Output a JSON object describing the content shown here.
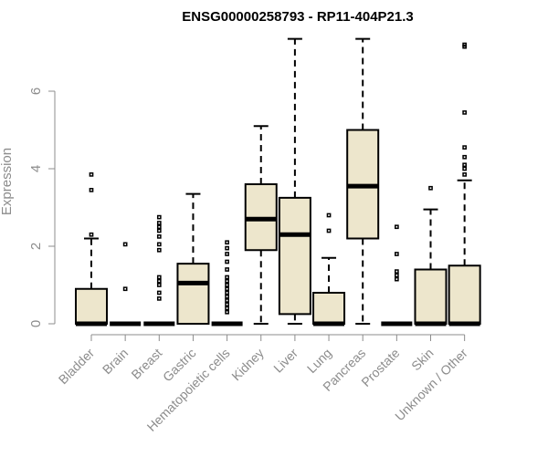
{
  "chart_data": {
    "type": "box",
    "title": "ENSG00000258793 - RP11-404P21.3",
    "xlabel": "",
    "ylabel": "Expression",
    "ylim": [
      0,
      7.4
    ],
    "yticks": [
      0,
      2,
      4,
      6
    ],
    "categories": [
      "Bladder",
      "Brain",
      "Breast",
      "Gastric",
      "Hematopoietic cells",
      "Kidney",
      "Liver",
      "Lung",
      "Pancreas",
      "Prostate",
      "Skin",
      "Unknown / Other"
    ],
    "boxes": [
      {
        "name": "Bladder",
        "whisker_low": 0,
        "q1": 0,
        "median": 0,
        "q3": 0.9,
        "whisker_high": 2.2,
        "outliers": [
          2.3,
          3.45,
          3.85
        ]
      },
      {
        "name": "Brain",
        "whisker_low": 0,
        "q1": 0,
        "median": 0,
        "q3": 0,
        "whisker_high": 0,
        "outliers": [
          0.9,
          2.05
        ]
      },
      {
        "name": "Breast",
        "whisker_low": 0,
        "q1": 0,
        "median": 0,
        "q3": 0,
        "whisker_high": 0,
        "outliers": [
          0.65,
          0.8,
          1.0,
          1.1,
          1.2,
          1.9,
          2.05,
          2.25,
          2.4,
          2.5,
          2.6,
          2.75
        ]
      },
      {
        "name": "Gastric",
        "whisker_low": 0,
        "q1": 0,
        "median": 1.05,
        "q3": 1.55,
        "whisker_high": 3.35,
        "outliers": []
      },
      {
        "name": "Hematopoietic cells",
        "whisker_low": 0,
        "q1": 0,
        "median": 0,
        "q3": 0,
        "whisker_high": 0,
        "outliers": [
          0.3,
          0.4,
          0.5,
          0.6,
          0.7,
          0.8,
          0.9,
          1.0,
          1.1,
          1.2,
          1.4,
          1.6,
          1.8,
          1.95,
          2.1
        ]
      },
      {
        "name": "Kidney",
        "whisker_low": 0,
        "q1": 1.9,
        "median": 2.7,
        "q3": 3.6,
        "whisker_high": 5.1,
        "outliers": []
      },
      {
        "name": "Liver",
        "whisker_low": 0,
        "q1": 0.25,
        "median": 2.3,
        "q3": 3.25,
        "whisker_high": 7.35,
        "outliers": []
      },
      {
        "name": "Lung",
        "whisker_low": 0,
        "q1": 0,
        "median": 0,
        "q3": 0.8,
        "whisker_high": 1.7,
        "outliers": [
          2.4,
          2.8
        ]
      },
      {
        "name": "Pancreas",
        "whisker_low": 0,
        "q1": 2.2,
        "median": 3.55,
        "q3": 5.0,
        "whisker_high": 7.35,
        "outliers": []
      },
      {
        "name": "Prostate",
        "whisker_low": 0,
        "q1": 0,
        "median": 0,
        "q3": 0,
        "whisker_high": 0,
        "outliers": [
          1.15,
          1.25,
          1.35,
          1.8,
          2.5
        ]
      },
      {
        "name": "Skin",
        "whisker_low": 0,
        "q1": 0,
        "median": 0,
        "q3": 1.4,
        "whisker_high": 2.95,
        "outliers": [
          3.5
        ]
      },
      {
        "name": "Unknown / Other",
        "whisker_low": 0,
        "q1": 0,
        "median": 0,
        "q3": 1.5,
        "whisker_high": 3.7,
        "outliers": [
          3.85,
          4.0,
          4.1,
          4.3,
          4.55,
          5.45,
          7.15,
          7.2
        ]
      }
    ]
  }
}
